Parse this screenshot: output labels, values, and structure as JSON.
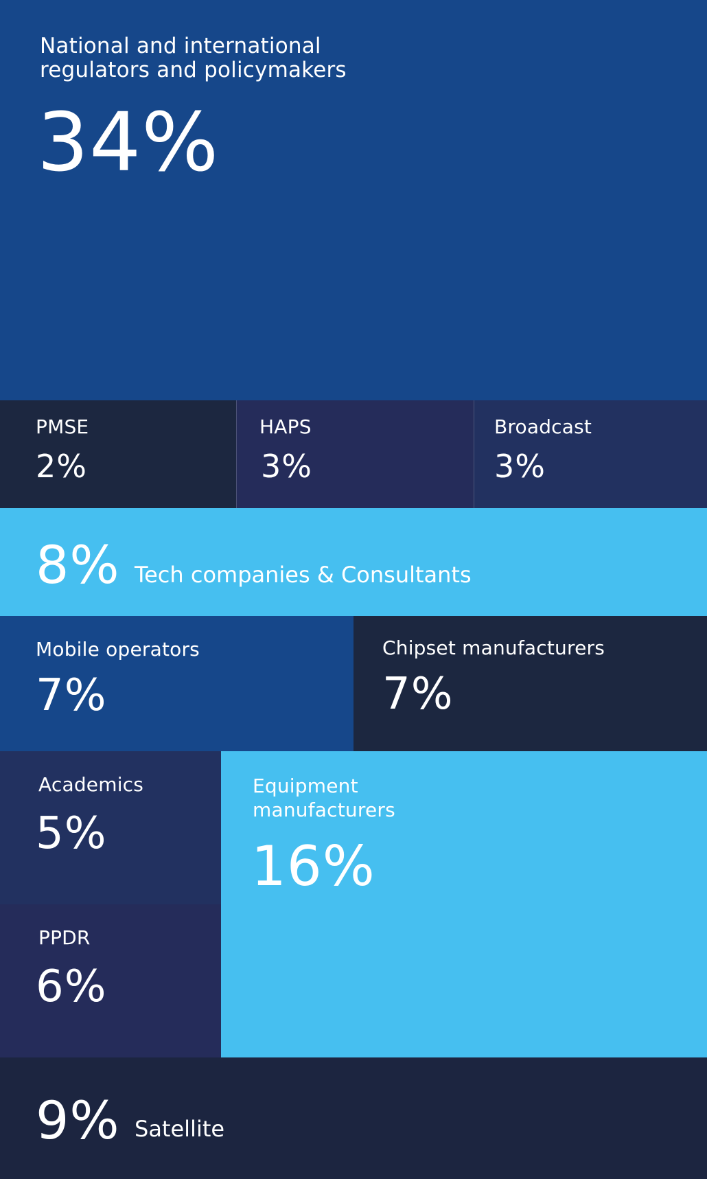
{
  "chart_data": {
    "type": "treemap",
    "title": "",
    "unit": "%",
    "series": [
      {
        "name": "National and international regulators and policymakers",
        "label": "National and international\nregulators and policymakers",
        "value": 34,
        "display": "34%",
        "color": "#16478a"
      },
      {
        "name": "PMSE",
        "label": "PMSE",
        "value": 2,
        "display": "2%",
        "color": "#1c2740"
      },
      {
        "name": "HAPS",
        "label": "HAPS",
        "value": 3,
        "display": "3%",
        "color": "#252c5a"
      },
      {
        "name": "Broadcast",
        "label": "Broadcast",
        "value": 3,
        "display": "3%",
        "color": "#223160"
      },
      {
        "name": "Tech companies & Consultants",
        "label": "Tech companies & Consultants",
        "value": 8,
        "display": "8%",
        "color": "#46bff0"
      },
      {
        "name": "Mobile operators",
        "label": "Mobile operators",
        "value": 7,
        "display": "7%",
        "color": "#16478a"
      },
      {
        "name": "Chipset manufacturers",
        "label": "Chipset manufacturers",
        "value": 7,
        "display": "7%",
        "color": "#1c2740"
      },
      {
        "name": "Academics",
        "label": "Academics",
        "value": 5,
        "display": "5%",
        "color": "#223160"
      },
      {
        "name": "PPDR",
        "label": "PPDR",
        "value": 6,
        "display": "6%",
        "color": "#252c5a"
      },
      {
        "name": "Equipment manufacturers",
        "label": "Equipment\nmanufacturers",
        "value": 16,
        "display": "16%",
        "color": "#46bff0"
      },
      {
        "name": "Satellite",
        "label": "Satellite",
        "value": 9,
        "display": "9%",
        "color": "#1c2540"
      }
    ]
  }
}
